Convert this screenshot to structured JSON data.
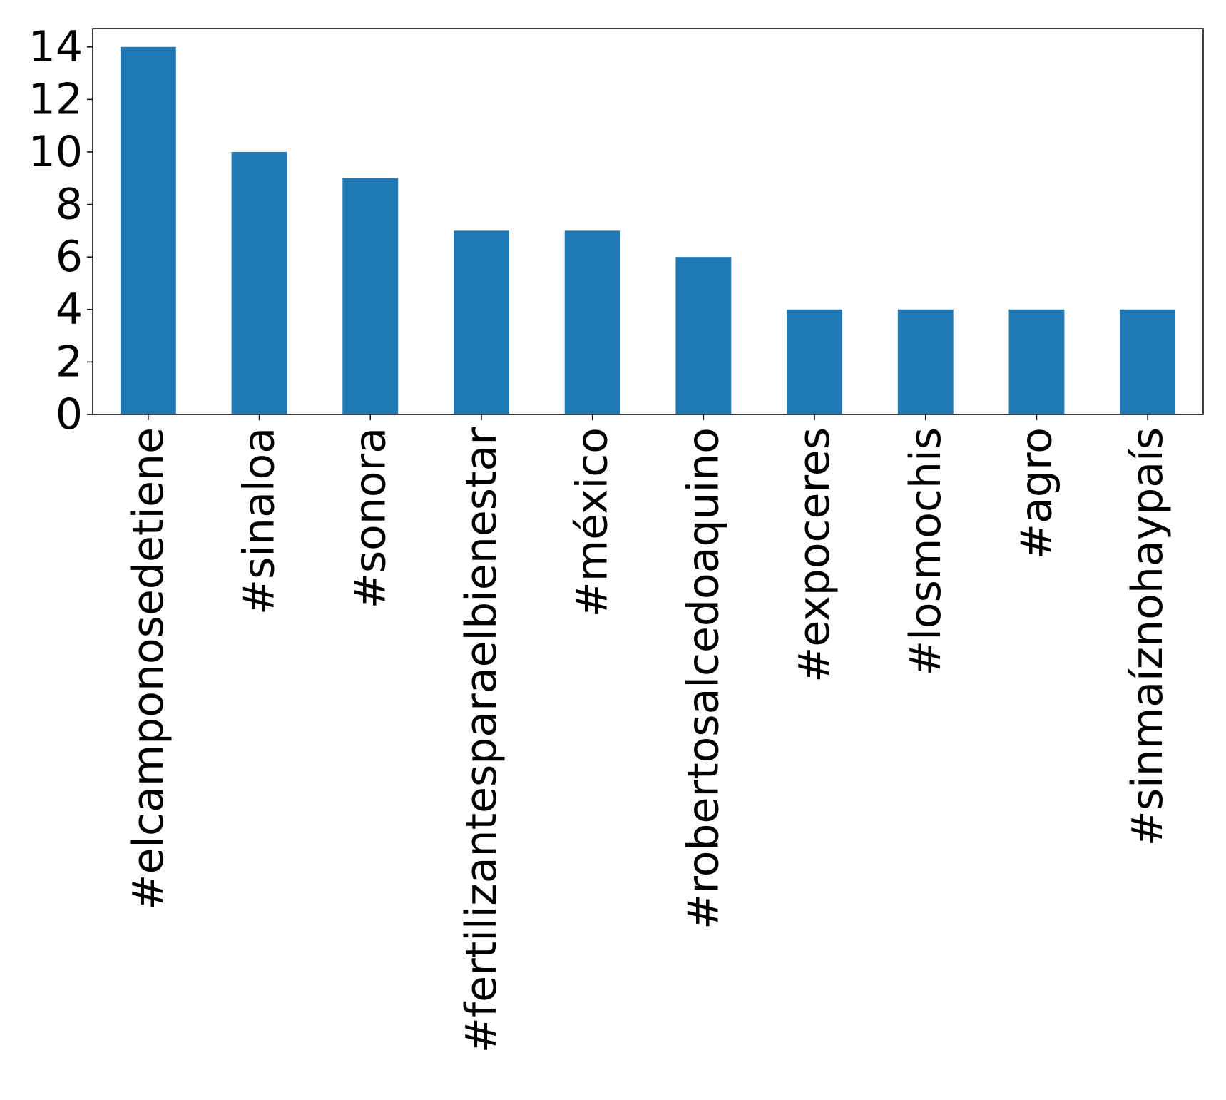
{
  "chart_data": {
    "type": "bar",
    "title": "",
    "xlabel": "",
    "ylabel": "",
    "categories": [
      "#elcamponosedetiene",
      "#sinaloa",
      "#sonora",
      "#fertilizantesparaelbienestar",
      "#méxico",
      "#robertosalcedoaquino",
      "#expoceres",
      "#losmochis",
      "#agro",
      "#sinmaíznohaypaís"
    ],
    "values": [
      14,
      10,
      9,
      7,
      7,
      6,
      4,
      4,
      4,
      4
    ],
    "ylim": [
      0,
      14.7
    ],
    "yticks": [
      0,
      2,
      4,
      6,
      8,
      10,
      12,
      14
    ],
    "bar_color": "#1f77b4",
    "grid": false,
    "legend": "none"
  }
}
